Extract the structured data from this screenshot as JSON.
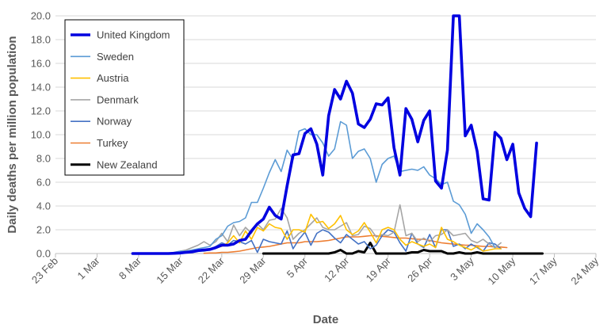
{
  "chart_data": {
    "type": "line",
    "title": "",
    "xlabel": "Date",
    "ylabel": "Daily deaths per million population",
    "x_start_date": "2020-02-23",
    "xlim_days": [
      0,
      91
    ],
    "x_ticks": [
      {
        "day": 0,
        "label": "23 Feb"
      },
      {
        "day": 7,
        "label": "1 Mar"
      },
      {
        "day": 14,
        "label": "8 Mar"
      },
      {
        "day": 21,
        "label": "15 Mar"
      },
      {
        "day": 28,
        "label": "22 Mar"
      },
      {
        "day": 35,
        "label": "29 Mar"
      },
      {
        "day": 42,
        "label": "5 Apr"
      },
      {
        "day": 49,
        "label": "12 Apr"
      },
      {
        "day": 56,
        "label": "19 Apr"
      },
      {
        "day": 63,
        "label": "26 Apr"
      },
      {
        "day": 70,
        "label": "3 May"
      },
      {
        "day": 77,
        "label": "10 May"
      },
      {
        "day": 84,
        "label": "17 May"
      },
      {
        "day": 91,
        "label": "24 May"
      }
    ],
    "ylim": [
      0,
      20
    ],
    "y_ticks": [
      "0.0",
      "2.0",
      "4.0",
      "6.0",
      "8.0",
      "10.0",
      "12.0",
      "14.0",
      "16.0",
      "18.0",
      "20.0"
    ],
    "grid": "horizontal",
    "legend_position": "top-left",
    "series": [
      {
        "name": "United Kingdom",
        "color": "#0000e0",
        "width": 3.6,
        "start_day": 13,
        "values": [
          0,
          0,
          0,
          0,
          0,
          0,
          0,
          0.02,
          0.05,
          0.1,
          0.15,
          0.25,
          0.3,
          0.35,
          0.5,
          0.7,
          0.7,
          0.8,
          1.1,
          1.2,
          1.9,
          2.5,
          2.9,
          3.9,
          3.2,
          2.9,
          5.7,
          8.3,
          8.4,
          10.1,
          10.5,
          9.2,
          6.6,
          11.6,
          13.8,
          13.0,
          14.5,
          13.5,
          10.9,
          10.6,
          11.3,
          12.6,
          12.5,
          13.1,
          8.9,
          6.6,
          12.2,
          11.3,
          9.4,
          11.2,
          12.0,
          6.1,
          5.5,
          8.7,
          21.0,
          21.0,
          9.9,
          10.8,
          8.6,
          4.6,
          4.5,
          10.2,
          9.7,
          7.9,
          9.2,
          5.1,
          3.8,
          3.1,
          9.3
        ]
      },
      {
        "name": "Sweden",
        "color": "#5b9bd5",
        "width": 1.6,
        "start_day": 20,
        "values": [
          0.1,
          0.2,
          0.2,
          0.3,
          0.4,
          0.5,
          0.6,
          1.2,
          1.5,
          2.3,
          2.6,
          2.7,
          3.0,
          4.3,
          4.3,
          5.5,
          6.8,
          7.9,
          6.9,
          8.7,
          7.9,
          10.3,
          10.5,
          10.0,
          10.0,
          9.3,
          8.2,
          8.8,
          11.1,
          10.8,
          8.0,
          8.6,
          8.8,
          8.0,
          6.0,
          7.5,
          8.0,
          8.2,
          6.9,
          7.0,
          7.1,
          7.0,
          7.3,
          6.6,
          6.3,
          5.8,
          6.0,
          4.4,
          4.1,
          3.3,
          1.7,
          2.5,
          2.0,
          1.4,
          0.5
        ]
      },
      {
        "name": "Austria",
        "color": "#ffc000",
        "width": 1.6,
        "start_day": 21,
        "values": [
          0.05,
          0.1,
          0.1,
          0.2,
          0.3,
          0.3,
          0.5,
          0.6,
          0.9,
          1.5,
          0.9,
          1.9,
          1.2,
          2.2,
          1.9,
          2.5,
          2.2,
          2.1,
          1.2,
          2.0,
          2.0,
          1.8,
          3.3,
          2.6,
          2.7,
          2.1,
          2.5,
          3.2,
          2.0,
          1.6,
          1.9,
          2.6,
          1.8,
          0.9,
          2.0,
          2.2,
          2.0,
          1.2,
          0.7,
          1.0,
          0.8,
          0.6,
          0.8,
          0.5,
          2.2,
          1.2,
          1.0,
          0.7,
          0.5,
          0.3,
          0.6,
          0.2,
          0.3,
          0.4,
          0.4
        ]
      },
      {
        "name": "Denmark",
        "color": "#a5a5a5",
        "width": 1.6,
        "start_day": 20,
        "values": [
          0.1,
          0.2,
          0.3,
          0.5,
          0.7,
          1.0,
          0.7,
          1.0,
          1.7,
          1.0,
          2.4,
          1.5,
          2.2,
          1.7,
          2.5,
          2.0,
          2.8,
          2.9,
          3.8,
          3.0,
          1.2,
          1.7,
          2.0,
          2.5,
          3.0,
          2.2,
          2.0,
          2.0,
          2.3,
          2.6,
          1.5,
          1.6,
          2.3,
          2.1,
          1.4,
          1.6,
          1.5,
          1.8,
          4.1,
          1.5,
          1.7,
          1.0,
          1.3,
          1.0,
          1.5,
          1.6,
          2.0,
          1.5,
          1.6,
          1.7,
          1.1,
          0.9,
          1.2,
          0.8,
          0.5,
          0.9
        ]
      },
      {
        "name": "Norway",
        "color": "#4472c4",
        "width": 1.6,
        "start_day": 24,
        "values": [
          0.2,
          0.2,
          0.3,
          0.6,
          0.9,
          0.7,
          1.1,
          1.0,
          0.8,
          1.1,
          0.1,
          1.2,
          1.0,
          0.9,
          0.8,
          1.9,
          0.4,
          1.2,
          1.8,
          0.7,
          1.7,
          2.0,
          1.8,
          1.3,
          0.9,
          1.6,
          1.2,
          0.8,
          1.0,
          0.4,
          0.7,
          1.5,
          2.0,
          1.8,
          0.9,
          0.2,
          1.7,
          0.8,
          0.5,
          1.6,
          0.5,
          2.0,
          2.0,
          0.6,
          0.8,
          0.4,
          0.8,
          0.5,
          0.2,
          0.9,
          0.8,
          0.4
        ]
      },
      {
        "name": "Turkey",
        "color": "#ed7d31",
        "width": 1.6,
        "start_day": 25,
        "values": [
          0.02,
          0.05,
          0.05,
          0.1,
          0.1,
          0.15,
          0.2,
          0.3,
          0.4,
          0.5,
          0.55,
          0.6,
          0.7,
          0.8,
          0.9,
          0.9,
          0.9,
          1.0,
          1.0,
          1.0,
          1.05,
          1.1,
          1.2,
          1.3,
          1.4,
          1.4,
          1.4,
          1.45,
          1.5,
          1.5,
          1.45,
          1.4,
          1.35,
          1.3,
          1.3,
          1.25,
          1.2,
          1.2,
          1.1,
          1.0,
          0.9,
          0.85,
          0.8,
          0.75,
          0.7,
          0.7,
          0.65,
          0.6,
          0.6,
          0.55,
          0.55,
          0.5
        ]
      },
      {
        "name": "New Zealand",
        "color": "#000000",
        "width": 3.0,
        "start_day": 35,
        "values": [
          0,
          0,
          0,
          0,
          0,
          0,
          0,
          0,
          0,
          0,
          0,
          0,
          0.1,
          0.3,
          0,
          0,
          0.2,
          0.1,
          0.9,
          0,
          0,
          0,
          0,
          0,
          0,
          0.1,
          0.1,
          0.3,
          0.2,
          0.2,
          0.2,
          0,
          0,
          0.1,
          0,
          0,
          0.1,
          0,
          0,
          0,
          0,
          0,
          0,
          0,
          0,
          0,
          0,
          0
        ]
      }
    ]
  }
}
